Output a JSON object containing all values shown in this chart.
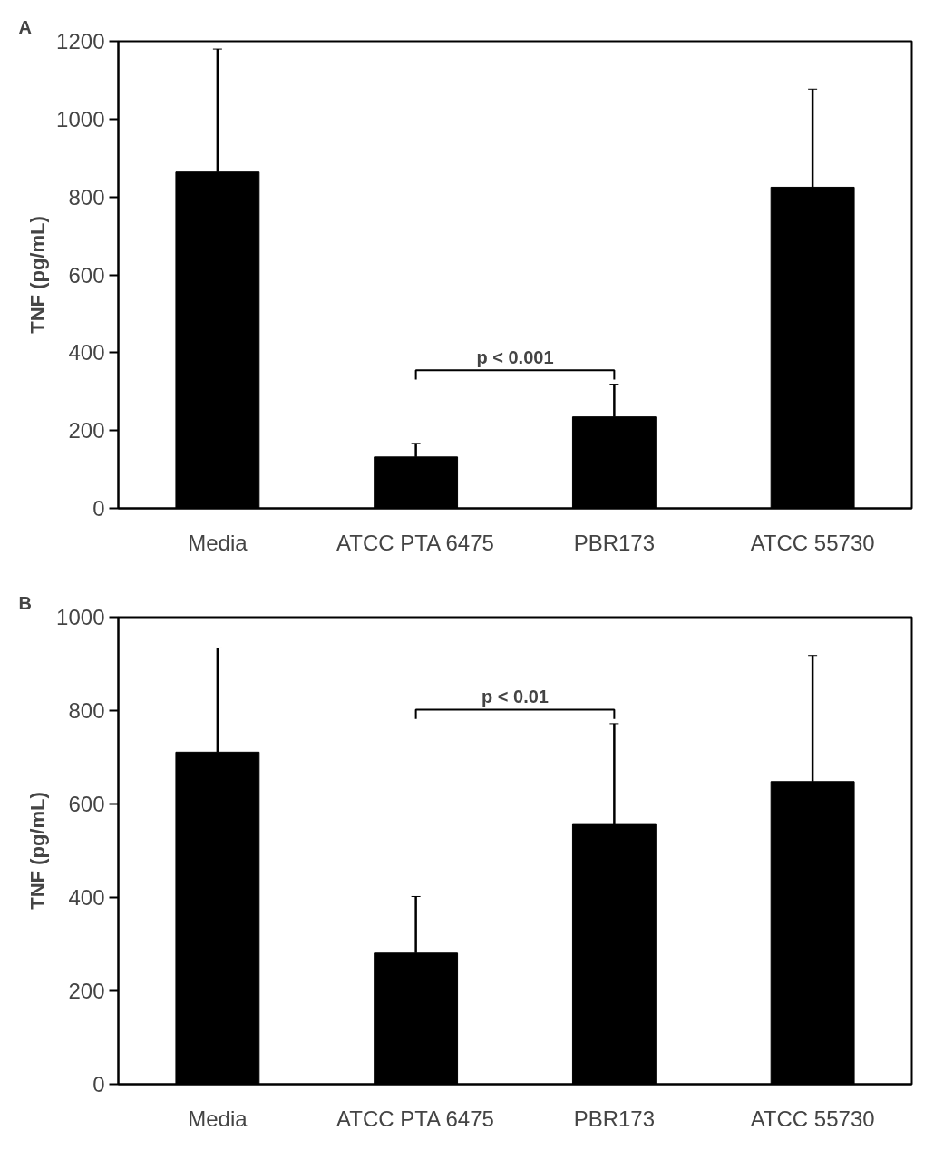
{
  "chart_data": [
    {
      "type": "bar",
      "title": "A",
      "ylabel": "TNF (pg/mL)",
      "categories": [
        "Media",
        "ATCC PTA 6475",
        "PBR173",
        "ATCC 55730"
      ],
      "values": [
        864,
        132,
        235,
        825
      ],
      "errors": [
        [
          864,
          1180
        ],
        [
          132,
          167
        ],
        [
          235,
          319
        ],
        [
          825,
          1077
        ]
      ],
      "color": "#000000",
      "ylim": [
        0,
        1200
      ],
      "yticks": [
        0,
        200,
        400,
        600,
        800,
        1000,
        1200
      ],
      "grid": false,
      "annotations": [
        "p < 0.001"
      ]
    },
    {
      "type": "bar",
      "title": "B",
      "ylabel": "TNF (pg/mL)",
      "categories": [
        "Media",
        "ATCC PTA 6475",
        "PBR173",
        "ATCC 55730"
      ],
      "values": [
        711,
        281,
        558,
        648
      ],
      "errors": [
        [
          711,
          934
        ],
        [
          281,
          402
        ],
        [
          558,
          772
        ],
        [
          648,
          918
        ]
      ],
      "color": "#000000",
      "ylim": [
        0,
        1000
      ],
      "yticks": [
        0,
        200,
        400,
        600,
        800,
        1000
      ],
      "grid": false,
      "annotations": [
        "p < 0.01"
      ]
    }
  ]
}
